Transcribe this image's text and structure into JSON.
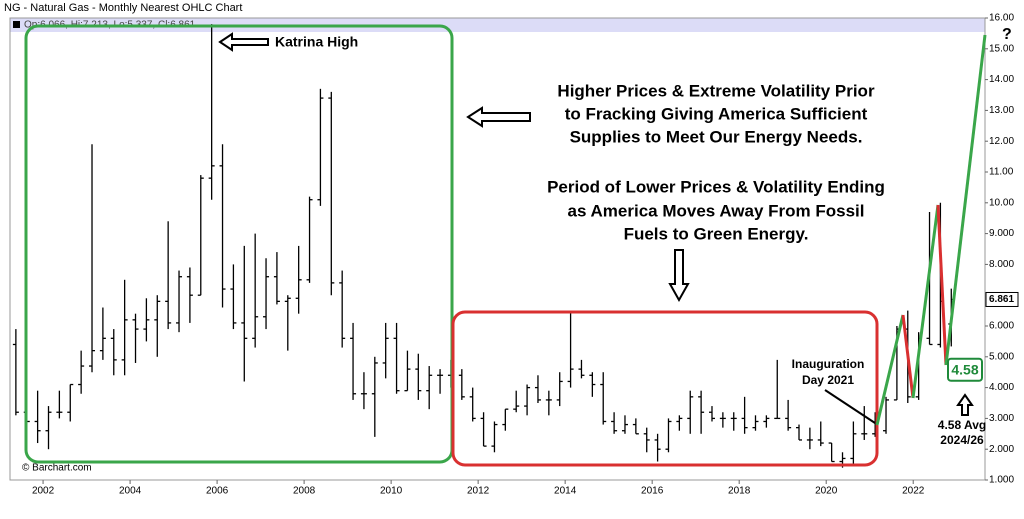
{
  "chart_data": {
    "type": "ohlc",
    "title": "NG - Natural Gas - Monthly Nearest OHLC Chart",
    "legend_text": "Op:6.066, Hi:7.213, Lo:5.337, Cl:6.861",
    "source": "© Barchart.com",
    "color": "#000000",
    "x": [
      2001.375,
      2001.625,
      2001.875,
      2002.125,
      2002.375,
      2002.625,
      2002.875,
      2003.125,
      2003.375,
      2003.625,
      2003.875,
      2004.125,
      2004.375,
      2004.625,
      2004.875,
      2005.125,
      2005.375,
      2005.625,
      2005.875,
      2006.125,
      2006.375,
      2006.625,
      2006.875,
      2007.125,
      2007.375,
      2007.625,
      2007.875,
      2008.125,
      2008.375,
      2008.625,
      2008.875,
      2009.125,
      2009.375,
      2009.625,
      2009.875,
      2010.125,
      2010.375,
      2010.625,
      2010.875,
      2011.125,
      2011.375,
      2011.625,
      2011.875,
      2012.125,
      2012.375,
      2012.625,
      2012.875,
      2013.125,
      2013.375,
      2013.625,
      2013.875,
      2014.125,
      2014.375,
      2014.625,
      2014.875,
      2015.125,
      2015.375,
      2015.625,
      2015.875,
      2016.125,
      2016.375,
      2016.625,
      2016.875,
      2017.125,
      2017.375,
      2017.625,
      2017.875,
      2018.125,
      2018.375,
      2018.625,
      2018.875,
      2019.125,
      2019.375,
      2019.625,
      2019.875,
      2020.125,
      2020.375,
      2020.625,
      2020.875,
      2021.125,
      2021.375,
      2021.625,
      2021.875,
      2022.125,
      2022.375,
      2022.625,
      2022.875
    ],
    "open": [
      5.4,
      3.2,
      2.9,
      2.6,
      3.2,
      3.2,
      4.1,
      4.7,
      5.2,
      5.6,
      4.9,
      6.2,
      5.9,
      6.2,
      6.8,
      6.1,
      7.6,
      7.0,
      10.8,
      11.2,
      7.2,
      6.1,
      5.6,
      6.3,
      7.6,
      6.8,
      6.9,
      7.5,
      10.1,
      13.4,
      7.4,
      5.6,
      3.8,
      3.8,
      4.8,
      5.6,
      3.9,
      4.6,
      3.9,
      4.4,
      4.4,
      4.4,
      3.7,
      3.0,
      2.1,
      2.8,
      3.3,
      3.4,
      4.0,
      3.6,
      3.6,
      4.2,
      4.6,
      4.4,
      4.1,
      2.9,
      2.6,
      2.8,
      2.5,
      2.3,
      2.0,
      2.9,
      3.0,
      3.7,
      3.2,
      3.0,
      3.0,
      3.0,
      2.7,
      2.9,
      3.0,
      3.0,
      2.7,
      2.3,
      2.3,
      2.2,
      1.6,
      1.7,
      2.5,
      2.5,
      2.6,
      3.6,
      5.9,
      3.7,
      5.6,
      5.4,
      6.066
    ],
    "high": [
      5.9,
      3.6,
      3.9,
      3.4,
      3.9,
      4.1,
      5.2,
      11.9,
      6.6,
      5.9,
      7.5,
      6.4,
      6.9,
      7.0,
      9.4,
      7.8,
      7.9,
      10.9,
      15.8,
      11.9,
      8.0,
      8.6,
      9.0,
      8.2,
      8.4,
      7.0,
      8.6,
      10.2,
      13.7,
      13.6,
      7.8,
      6.1,
      4.5,
      5.0,
      6.1,
      6.1,
      5.2,
      5.1,
      4.7,
      4.6,
      4.9,
      4.6,
      4.0,
      3.2,
      2.9,
      3.3,
      3.9,
      4.1,
      4.4,
      3.9,
      4.5,
      6.5,
      4.9,
      4.5,
      4.5,
      3.2,
      3.1,
      3.0,
      2.7,
      2.5,
      3.0,
      3.1,
      3.9,
      3.9,
      3.4,
      3.2,
      3.2,
      3.7,
      3.1,
      3.1,
      4.9,
      3.6,
      2.8,
      2.7,
      2.9,
      2.2,
      1.9,
      2.9,
      3.4,
      3.2,
      3.7,
      6.0,
      6.5,
      5.8,
      9.7,
      10.0,
      7.213
    ],
    "low": [
      3.1,
      1.8,
      2.2,
      2.0,
      3.0,
      2.9,
      3.8,
      4.5,
      4.9,
      4.4,
      4.4,
      4.8,
      5.5,
      5.0,
      5.9,
      5.8,
      6.1,
      7.0,
      10.1,
      6.6,
      5.9,
      4.2,
      5.3,
      5.9,
      6.7,
      5.2,
      6.4,
      7.4,
      9.9,
      7.0,
      5.3,
      3.6,
      3.3,
      2.4,
      4.3,
      3.8,
      3.9,
      3.6,
      3.3,
      3.8,
      4.0,
      3.6,
      2.9,
      2.1,
      1.9,
      2.6,
      3.2,
      3.1,
      3.5,
      3.1,
      3.4,
      4.0,
      4.3,
      3.7,
      2.8,
      2.5,
      2.5,
      2.5,
      1.9,
      1.6,
      1.9,
      2.6,
      2.5,
      2.5,
      2.9,
      2.7,
      2.6,
      2.5,
      2.6,
      2.7,
      3.0,
      2.6,
      2.3,
      2.0,
      2.1,
      1.6,
      1.4,
      1.5,
      2.3,
      2.4,
      2.5,
      3.6,
      3.5,
      3.6,
      5.4,
      5.3,
      5.337
    ],
    "close": [
      3.2,
      2.9,
      2.6,
      3.2,
      3.2,
      4.1,
      4.7,
      5.2,
      5.6,
      4.9,
      6.2,
      5.9,
      6.2,
      6.8,
      6.1,
      7.6,
      7.0,
      10.8,
      11.2,
      7.2,
      6.1,
      5.6,
      6.3,
      7.6,
      6.8,
      6.9,
      7.5,
      10.1,
      13.4,
      7.4,
      5.6,
      3.8,
      3.8,
      4.8,
      5.6,
      3.9,
      4.6,
      3.9,
      4.4,
      4.4,
      4.4,
      3.7,
      3.0,
      2.1,
      2.8,
      3.3,
      3.4,
      4.0,
      3.6,
      3.6,
      4.2,
      4.6,
      4.4,
      4.1,
      2.9,
      2.6,
      2.8,
      2.5,
      2.3,
      2.0,
      2.9,
      3.0,
      3.7,
      3.2,
      3.0,
      3.0,
      3.0,
      2.7,
      2.9,
      3.0,
      3.0,
      2.7,
      2.3,
      2.3,
      2.2,
      1.6,
      1.7,
      2.5,
      2.5,
      2.6,
      3.6,
      5.9,
      3.7,
      5.6,
      5.4,
      6.8,
      6.861
    ],
    "xlim": [
      2001.24,
      2023.65
    ],
    "xticks": [
      2002,
      2004,
      2006,
      2008,
      2010,
      2012,
      2014,
      2016,
      2018,
      2020,
      2022
    ],
    "ylim": [
      1,
      16
    ],
    "yticks": [
      {
        "value": 1,
        "label": "1.000"
      },
      {
        "value": 2,
        "label": "2.000"
      },
      {
        "value": 3,
        "label": "3.000"
      },
      {
        "value": 4,
        "label": "4.000"
      },
      {
        "value": 5,
        "label": "5.000"
      },
      {
        "value": 6,
        "label": "6.000"
      },
      {
        "value": 8,
        "label": "8.000"
      },
      {
        "value": 9,
        "label": "9.000"
      },
      {
        "value": 10,
        "label": "10.00"
      },
      {
        "value": 11,
        "label": "11.00"
      },
      {
        "value": 12,
        "label": "12.00"
      },
      {
        "value": 13,
        "label": "13.00"
      },
      {
        "value": 14,
        "label": "14.00"
      },
      {
        "value": 15,
        "label": "15.00"
      },
      {
        "value": 16,
        "label": "16.00"
      }
    ],
    "last_price": {
      "value": 6.861,
      "label": "6.861"
    },
    "avg_marker": {
      "value": 4.58,
      "label": "4.58"
    },
    "annotations": {
      "katrina": "Katrina High",
      "note_1": [
        "Higher Prices & Extreme Volatility Prior",
        "to Fracking Giving America Sufficient",
        "Supplies to Meet Our Energy Needs."
      ],
      "note_2": [
        "Period of Lower Prices & Volatility Ending",
        "as America Moves Away From Fossil",
        "Fuels to Green Energy."
      ],
      "inauguration": [
        "Inauguration",
        "Day 2021"
      ],
      "avg": [
        "4.58 Avg",
        "2024/26"
      ],
      "question": "?"
    }
  }
}
